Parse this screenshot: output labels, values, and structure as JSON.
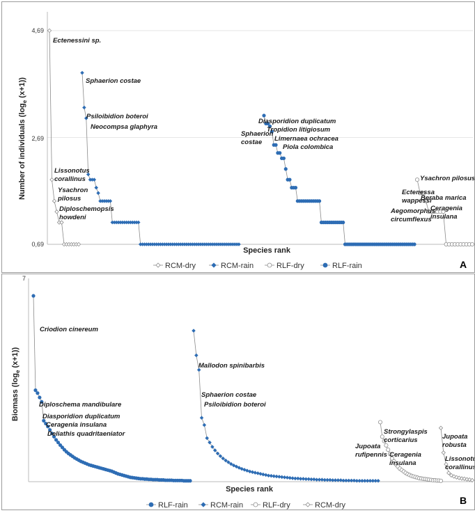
{
  "colors": {
    "blue": "#2e6db4",
    "open_stroke": "#8c8c8c",
    "line": "#8a8a8a"
  },
  "chart_data": [
    {
      "type": "scatter",
      "panel": "A",
      "xlabel": "Species rank",
      "ylabel_main": "Number of individuals (log",
      "ylabel_sub": "e",
      "ylabel_tail": " (x+1))",
      "yticks": [
        "4,69",
        "2,69",
        "0,69"
      ],
      "ylim": [
        0.69,
        4.69
      ],
      "legend": [
        "RCM-dry",
        "RCM-rain",
        "RLF-dry",
        "RLF-rain"
      ],
      "series": [
        {
          "name": "RCM-dry",
          "marker": "diamond-open",
          "values": [
            4.69,
            1.9,
            1.5,
            1.3,
            1.1,
            1.1,
            0.69,
            0.69,
            0.69,
            0.69,
            0.69,
            0.69,
            0.69
          ]
        },
        {
          "name": "RCM-rain",
          "marker": "diamond-filled",
          "values": [
            3.9,
            3.25,
            3.05,
            2.0,
            1.9,
            1.9,
            1.9,
            1.75,
            1.65,
            1.5,
            1.5,
            1.5,
            1.5,
            1.5,
            1.5,
            1.1,
            1.1,
            1.1,
            1.1,
            1.1,
            1.1,
            1.1,
            1.1,
            1.1,
            1.1,
            1.1,
            1.1,
            1.1,
            1.1,
            0.69,
            0.69,
            0.69,
            0.69,
            0.69,
            0.69,
            0.69,
            0.69,
            0.69,
            0.69,
            0.69,
            0.69,
            0.69,
            0.69,
            0.69,
            0.69,
            0.69,
            0.69,
            0.69,
            0.69,
            0.69,
            0.69,
            0.69,
            0.69,
            0.69,
            0.69,
            0.69,
            0.69,
            0.69,
            0.69,
            0.69,
            0.69,
            0.69,
            0.69,
            0.69,
            0.69,
            0.69,
            0.69,
            0.69,
            0.69,
            0.69,
            0.69,
            0.69,
            0.69,
            0.69,
            0.69,
            0.69,
            0.69,
            0.69,
            0.69
          ]
        },
        {
          "name": "RLF-dry",
          "marker": "circle-open",
          "values": [
            1.9,
            1.65,
            1.65,
            1.5,
            1.3,
            1.3,
            1.3,
            1.3,
            1.3,
            1.3,
            0.69,
            0.69,
            0.69,
            0.69,
            0.69,
            0.69,
            0.69,
            0.69,
            0.69,
            0.69
          ]
        },
        {
          "name": "RLF-rain",
          "marker": "circle-filled",
          "values": [
            3.1,
            2.95,
            2.95,
            2.9,
            2.8,
            2.55,
            2.55,
            2.4,
            2.4,
            2.3,
            2.3,
            2.1,
            1.9,
            1.9,
            1.75,
            1.75,
            1.75,
            1.5,
            1.5,
            1.5,
            1.5,
            1.5,
            1.5,
            1.5,
            1.5,
            1.5,
            1.5,
            1.5,
            1.5,
            1.1,
            1.1,
            1.1,
            1.1,
            1.1,
            1.1,
            1.1,
            1.1,
            1.1,
            1.1,
            1.1,
            1.1,
            0.69,
            0.69,
            0.69,
            0.69,
            0.69,
            0.69,
            0.69,
            0.69,
            0.69,
            0.69,
            0.69,
            0.69,
            0.69,
            0.69,
            0.69,
            0.69,
            0.69,
            0.69,
            0.69,
            0.69,
            0.69,
            0.69,
            0.69,
            0.69,
            0.69,
            0.69,
            0.69,
            0.69,
            0.69,
            0.69,
            0.69,
            0.69,
            0.69,
            0.69,
            0.69,
            0.69
          ]
        }
      ],
      "annotations": [
        {
          "text": "Ectenessini sp.",
          "series": "RCM-dry",
          "rank": 0
        },
        {
          "text": "Lissonotus",
          "series": "RCM-dry",
          "rank": 1
        },
        {
          "text": "corallinus",
          "series": "RCM-dry",
          "rank": 1
        },
        {
          "text": "Ysachron",
          "series": "RCM-dry",
          "rank": 2
        },
        {
          "text": "pilosus",
          "series": "RCM-dry",
          "rank": 2
        },
        {
          "text": "Diploschemopsis",
          "series": "RCM-dry",
          "rank": 3
        },
        {
          "text": "howdeni",
          "series": "RCM-dry",
          "rank": 3
        },
        {
          "text": "Sphaerion costae",
          "series": "RCM-rain",
          "rank": 0
        },
        {
          "text": "Psiloibidion boteroi",
          "series": "RCM-rain",
          "rank": 1
        },
        {
          "text": "Neocompsa glaphyra",
          "series": "RCM-rain",
          "rank": 2
        },
        {
          "text": "Diasporidion duplicatum",
          "series": "RLF-rain",
          "rank": 0
        },
        {
          "text": "Tropidion litigiosum",
          "series": "RLF-rain",
          "rank": 1
        },
        {
          "text": "Limernaea ochracea",
          "series": "RLF-rain",
          "rank": 3
        },
        {
          "text": "Piola colombica",
          "series": "RLF-rain",
          "rank": 4
        },
        {
          "text": "Sphaerion",
          "series": "RLF-rain",
          "rank": 1
        },
        {
          "text": "costae",
          "series": "RLF-rain",
          "rank": 1
        },
        {
          "text": "Ysachron pilosus",
          "series": "RLF-dry",
          "rank": 0
        },
        {
          "text": "Ectenessa",
          "series": "RLF-dry",
          "rank": 1
        },
        {
          "text": "wappessi",
          "series": "RLF-dry",
          "rank": 1
        },
        {
          "text": "Beraba marica",
          "series": "RLF-dry",
          "rank": 2
        },
        {
          "text": "Aegomorphus",
          "series": "RLF-dry",
          "rank": 3
        },
        {
          "text": "circumflexus",
          "series": "RLF-dry",
          "rank": 3
        },
        {
          "text": "Ceragenia",
          "series": "RLF-dry",
          "rank": 3
        },
        {
          "text": "insulana",
          "series": "RLF-dry",
          "rank": 3
        }
      ]
    },
    {
      "type": "scatter",
      "panel": "B",
      "xlabel": "Species rank",
      "ylabel_main": "Biomass (log",
      "ylabel_sub": "e",
      "ylabel_tail": " (x+1))",
      "ytop_tick": "7",
      "ylim": [
        0,
        7
      ],
      "legend": [
        "RLF-rain",
        "RCM-rain",
        "RLF-dry",
        "RCM-dry"
      ],
      "series": [
        {
          "name": "RLF-rain",
          "marker": "circle-filled",
          "values": [
            6.4,
            3.15,
            3.05,
            2.9,
            2.75,
            2.1,
            2.0,
            1.9,
            1.78,
            1.66,
            1.55,
            1.44,
            1.35,
            1.26,
            1.18,
            1.1,
            1.03,
            0.97,
            0.92,
            0.87,
            0.82,
            0.78,
            0.74,
            0.7,
            0.67,
            0.64,
            0.61,
            0.58,
            0.56,
            0.54,
            0.52,
            0.5,
            0.48,
            0.46,
            0.44,
            0.42,
            0.4,
            0.38,
            0.36,
            0.33,
            0.3,
            0.27,
            0.25,
            0.23,
            0.21,
            0.19,
            0.17,
            0.15,
            0.14,
            0.13,
            0.12,
            0.11,
            0.1,
            0.1,
            0.09,
            0.09,
            0.08,
            0.08,
            0.07,
            0.07,
            0.07,
            0.06,
            0.06,
            0.06,
            0.05,
            0.05,
            0.05,
            0.05,
            0.04,
            0.04,
            0.04,
            0.04,
            0.04,
            0.03,
            0.03,
            0.03,
            0.03
          ]
        },
        {
          "name": "RCM-rain",
          "marker": "diamond-filled",
          "values": [
            5.2,
            4.35,
            3.85,
            2.2,
            1.95,
            1.5,
            1.35,
            1.2,
            1.08,
            0.97,
            0.88,
            0.8,
            0.73,
            0.67,
            0.61,
            0.56,
            0.52,
            0.48,
            0.44,
            0.41,
            0.38,
            0.35,
            0.33,
            0.31,
            0.29,
            0.27,
            0.25,
            0.23,
            0.21,
            0.2,
            0.19,
            0.18,
            0.17,
            0.16,
            0.15,
            0.14,
            0.13,
            0.12,
            0.11,
            0.11,
            0.1,
            0.1,
            0.09,
            0.09,
            0.08,
            0.08,
            0.07,
            0.07,
            0.07,
            0.06,
            0.06,
            0.06,
            0.05,
            0.05,
            0.05,
            0.05,
            0.04,
            0.04,
            0.04,
            0.04,
            0.04,
            0.03,
            0.03,
            0.03,
            0.03,
            0.03,
            0.03,
            0.03,
            0.03,
            0.03
          ]
        },
        {
          "name": "RLF-dry",
          "marker": "circle-open",
          "values": [
            2.05,
            1.55,
            1.4,
            1.25,
            1.1,
            0.95,
            0.8,
            0.7,
            0.6,
            0.52,
            0.45,
            0.4,
            0.35,
            0.3,
            0.26,
            0.23,
            0.2,
            0.18,
            0.16,
            0.14,
            0.12,
            0.11,
            0.1,
            0.09,
            0.08,
            0.07,
            0.06,
            0.05,
            0.05,
            0.04,
            0.04,
            0.03
          ]
        },
        {
          "name": "RCM-dry",
          "marker": "diamond-open",
          "values": [
            1.85,
            1.0,
            0.6,
            0.3,
            0.22,
            0.18,
            0.15,
            0.13,
            0.11,
            0.1,
            0.08,
            0.07,
            0.05
          ]
        }
      ],
      "annotations": [
        {
          "text": "Criodion cinereum",
          "series": "RLF-rain",
          "rank": 0
        },
        {
          "text": "Diploschema mandibulare",
          "series": "RLF-rain",
          "rank": 1
        },
        {
          "text": "Diasporidion duplicatum",
          "series": "RLF-rain",
          "rank": 2
        },
        {
          "text": "Ceragenia insulana",
          "series": "RLF-rain",
          "rank": 3
        },
        {
          "text": "Deliathis quadritaeniator",
          "series": "RLF-rain",
          "rank": 4
        },
        {
          "text": "Mallodon spinibarbis",
          "series": "RCM-rain",
          "rank": 0
        },
        {
          "text": "Sphaerion costae",
          "series": "RCM-rain",
          "rank": 1
        },
        {
          "text": "Psiloibidion boteroi",
          "series": "RCM-rain",
          "rank": 2
        },
        {
          "text": "Strongylaspis",
          "series": "RLF-dry",
          "rank": 0
        },
        {
          "text": "corticarius",
          "series": "RLF-dry",
          "rank": 0
        },
        {
          "text": "Jupoata",
          "series": "RLF-dry",
          "rank": 1
        },
        {
          "text": "rufipennis",
          "series": "RLF-dry",
          "rank": 1
        },
        {
          "text": "Ceragenia",
          "series": "RLF-dry",
          "rank": 2
        },
        {
          "text": "insulana",
          "series": "RLF-dry",
          "rank": 2
        },
        {
          "text": "Jupoata",
          "series": "RCM-dry",
          "rank": 0
        },
        {
          "text": "robusta",
          "series": "RCM-dry",
          "rank": 0
        },
        {
          "text": "Lissonotus",
          "series": "RCM-dry",
          "rank": 1
        },
        {
          "text": "corallinus",
          "series": "RCM-dry",
          "rank": 1
        }
      ]
    }
  ]
}
